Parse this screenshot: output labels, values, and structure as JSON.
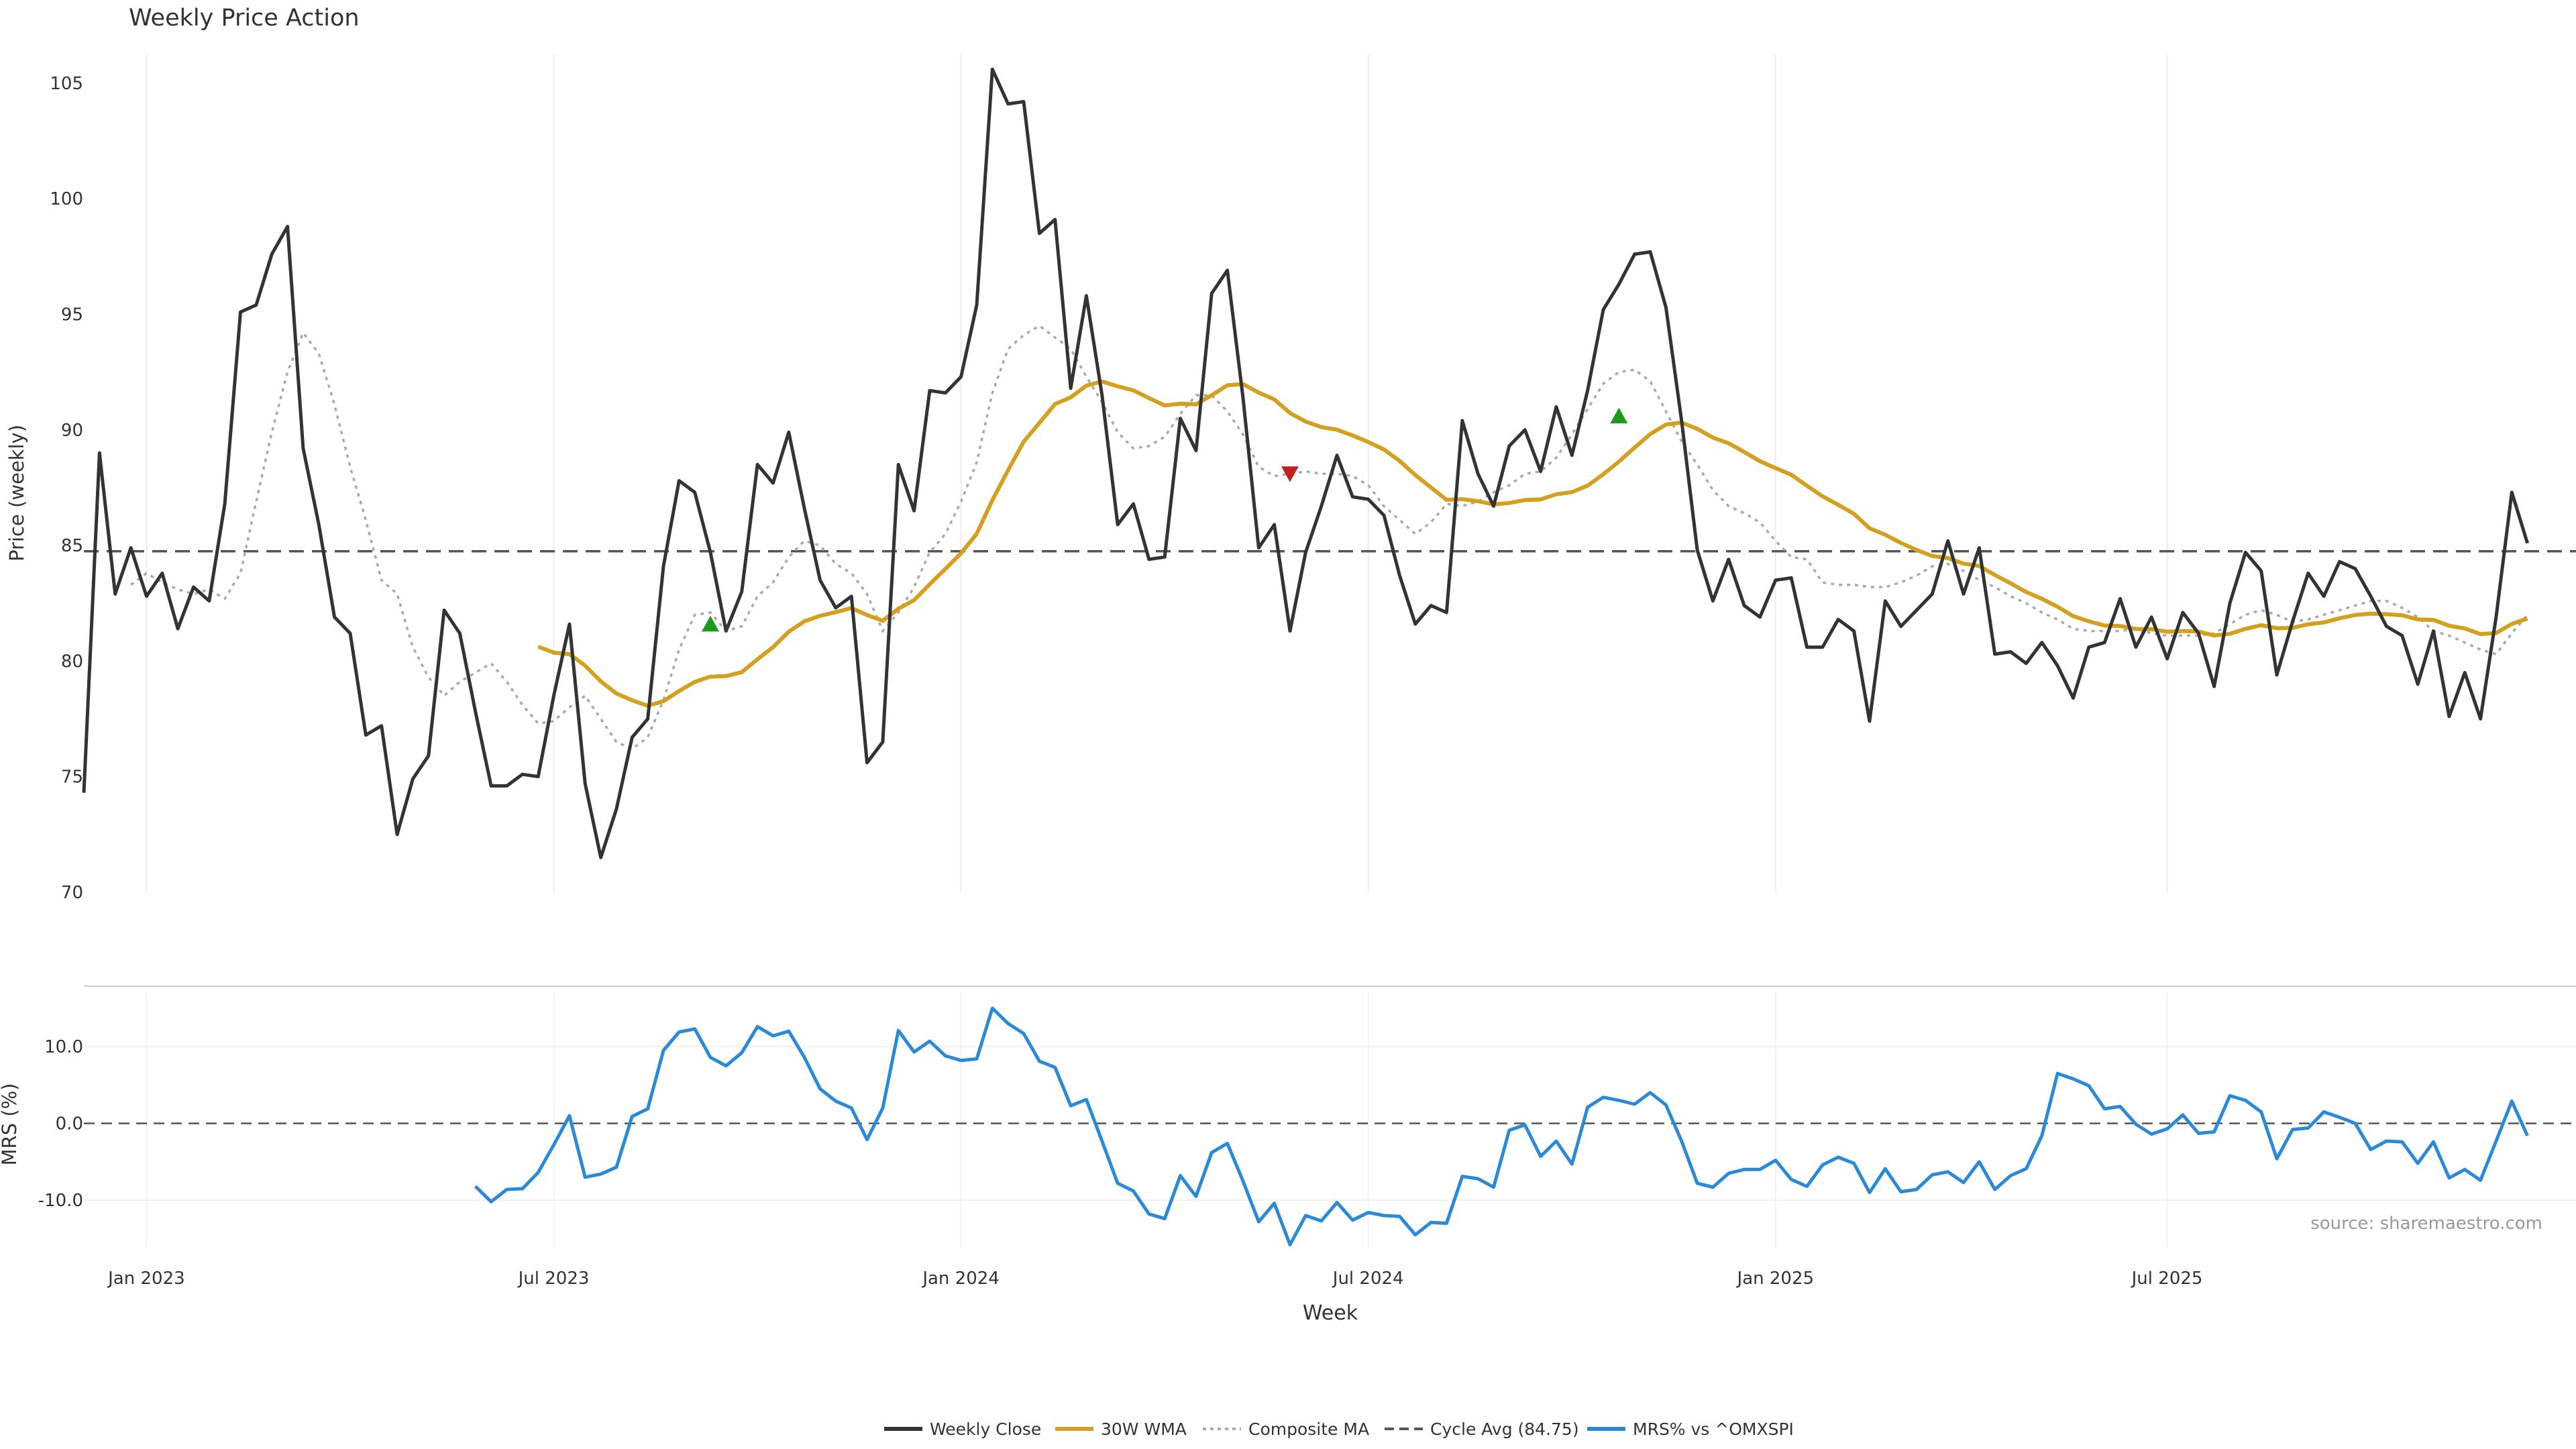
{
  "chart_data": {
    "type": "line",
    "title": "Weekly Price Action",
    "xlabel": "Week",
    "source_note": "source: sharemaestro.com",
    "x_ticks": [
      "Jan 2023",
      "Jul 2023",
      "Jan 2024",
      "Jul 2024",
      "Jan 2025",
      "Jul 2025"
    ],
    "price_panel": {
      "ylabel": "Price (weekly)",
      "ylim": [
        70,
        107
      ],
      "yticks": [
        70,
        75,
        80,
        85,
        90,
        95,
        100,
        105
      ],
      "cycle_avg": 84.75,
      "weekly_close": [
        74.3,
        89.0,
        82.9,
        84.9,
        82.8,
        83.8,
        81.4,
        83.2,
        82.6,
        86.8,
        95.1,
        95.4,
        97.6,
        98.8,
        89.2,
        85.9,
        81.9,
        81.2,
        76.8,
        77.2,
        72.5,
        74.9,
        75.9,
        82.2,
        81.2,
        77.8,
        74.6,
        74.6,
        75.1,
        75.0,
        78.5,
        81.6,
        74.7,
        71.5,
        73.6,
        76.7,
        77.5,
        84.1,
        87.8,
        87.3,
        84.7,
        81.3,
        83.0,
        88.5,
        87.7,
        89.9,
        86.6,
        83.5,
        82.3,
        82.8,
        75.6,
        76.5,
        88.5,
        86.5,
        91.7,
        91.6,
        92.3,
        95.4,
        105.6,
        104.1,
        104.2,
        98.5,
        99.1,
        91.8,
        95.8,
        91.5,
        85.9,
        86.8,
        84.4,
        84.5,
        90.5,
        89.1,
        95.9,
        96.9,
        91.4,
        84.9,
        85.9,
        81.3,
        84.7,
        86.7,
        88.9,
        87.1,
        87.0,
        86.3,
        83.7,
        81.6,
        82.4,
        82.1,
        90.4,
        88.1,
        86.7,
        89.3,
        90.0,
        88.2,
        91.0,
        88.9,
        91.7,
        95.2,
        96.3,
        97.6,
        97.7,
        95.3,
        90.4,
        84.8,
        82.6,
        84.4,
        82.4,
        81.9,
        83.5,
        83.6,
        80.6,
        80.6,
        81.8,
        81.3,
        77.4,
        82.6,
        81.5,
        82.2,
        82.9,
        85.2,
        82.9,
        84.9,
        80.3,
        80.4,
        79.9,
        80.8,
        79.8,
        78.4,
        80.6,
        80.8,
        82.7,
        80.6,
        81.9,
        80.1,
        82.1,
        81.2,
        78.9,
        82.5,
        84.7,
        83.9,
        79.4,
        81.7,
        83.8,
        82.8,
        84.3,
        84.0,
        82.8,
        81.5,
        81.1,
        79.0,
        81.3,
        77.6,
        79.5,
        77.5,
        81.9,
        87.3,
        85.1
      ],
      "composite_ma_start": 3,
      "composite_ma": [
        83.3,
        83.8,
        83.4,
        83.1,
        82.9,
        83.1,
        82.7,
        83.8,
        86.9,
        89.9,
        92.5,
        94.2,
        93.3,
        91.1,
        88.4,
        86.1,
        83.5,
        82.9,
        80.6,
        79.3,
        78.5,
        79.1,
        79.5,
        79.9,
        79.1,
        78.1,
        77.3,
        77.4,
        78.0,
        78.5,
        77.5,
        76.5,
        76.2,
        76.7,
        78.3,
        80.5,
        82.0,
        82.1,
        81.3,
        81.5,
        82.8,
        83.4,
        84.5,
        85.2,
        85.0,
        84.2,
        83.8,
        82.9,
        81.3,
        82.1,
        83.2,
        84.7,
        85.5,
        86.9,
        88.6,
        91.6,
        93.5,
        94.1,
        94.5,
        94.0,
        93.5,
        92.3,
        91.2,
        89.9,
        89.2,
        89.3,
        89.7,
        90.7,
        91.5,
        91.5,
        90.8,
        89.8,
        88.4,
        88.0,
        88.1,
        88.2,
        88.1,
        88.1,
        88.0,
        87.6,
        86.7,
        86.1,
        85.5,
        86.0,
        86.8,
        86.7,
        86.9,
        87.3,
        87.6,
        88.1,
        88.2,
        88.8,
        89.8,
        90.9,
        92.0,
        92.5,
        92.6,
        92.1,
        90.8,
        89.5,
        88.5,
        87.4,
        86.7,
        86.4,
        86.0,
        85.2,
        84.5,
        84.4,
        83.4,
        83.3,
        83.3,
        83.2,
        83.2,
        83.4,
        83.7,
        84.1,
        84.2,
        83.9,
        83.5,
        83.2,
        82.8,
        82.5,
        82.1,
        81.8,
        81.4,
        81.3,
        81.3,
        81.3,
        81.4,
        81.2,
        81.1,
        81.1,
        81.1,
        81.2,
        81.6,
        82.0,
        82.2,
        82.0,
        81.7,
        81.8,
        82.0,
        82.2,
        82.4,
        82.6,
        82.6,
        82.3,
        81.9,
        81.3,
        81.1,
        80.8,
        80.5,
        80.3,
        81.2,
        82.0
      ]
    },
    "mrs_panel": {
      "ylabel": "MRS (%)",
      "ylim": [
        -17.5,
        17
      ],
      "yticks": [
        -10.0,
        0.0,
        10.0
      ],
      "zero_line": 0.0,
      "start_index": 25,
      "values": [
        -8.2,
        -10.2,
        -8.6,
        -8.5,
        -6.4,
        -2.8,
        1.0,
        -7.0,
        -6.6,
        -5.7,
        0.9,
        1.9,
        9.5,
        11.9,
        12.3,
        8.6,
        7.5,
        9.2,
        12.6,
        11.4,
        12.0,
        8.6,
        4.5,
        2.9,
        2.0,
        -2.1,
        2.0,
        12.1,
        9.3,
        10.7,
        8.8,
        8.2,
        8.4,
        15.0,
        13.0,
        11.7,
        8.1,
        7.3,
        2.3,
        3.1,
        -2.3,
        -7.8,
        -8.8,
        -11.8,
        -12.4,
        -6.8,
        -9.5,
        -3.8,
        -2.6,
        -7.5,
        -12.8,
        -10.4,
        -15.8,
        -12.0,
        -12.7,
        -10.3,
        -12.6,
        -11.6,
        -12.0,
        -12.1,
        -14.5,
        -12.9,
        -13.0,
        -6.9,
        -7.2,
        -8.3,
        -0.9,
        -0.2,
        -4.3,
        -2.3,
        -5.3,
        2.1,
        3.4,
        3.0,
        2.5,
        4.0,
        2.4,
        -2.3,
        -7.8,
        -8.3,
        -6.5,
        -6.0,
        -6.0,
        -4.8,
        -7.3,
        -8.2,
        -5.4,
        -4.4,
        -5.2,
        -9.0,
        -5.9,
        -8.9,
        -8.6,
        -6.7,
        -6.3,
        -7.7,
        -5.0,
        -8.6,
        -6.8,
        -5.9,
        -1.6,
        6.5,
        5.8,
        4.9,
        1.9,
        2.2,
        -0.1,
        -1.4,
        -0.7,
        1.1,
        -1.3,
        -1.1,
        3.6,
        3.0,
        1.5,
        -4.6,
        -0.8,
        -0.6,
        1.5,
        0.8,
        -0.0,
        -3.4,
        -2.3,
        -2.4,
        -5.2,
        -2.4,
        -7.1,
        -6.0,
        -7.4,
        -2.3,
        2.9,
        -1.6
      ]
    },
    "markers": [
      {
        "type": "buy",
        "x_index": 40,
        "price": 81.6
      },
      {
        "type": "sell",
        "x_index": 77,
        "price": 88.1
      },
      {
        "type": "buy",
        "x_index": 98,
        "price": 90.6
      }
    ],
    "legend": [
      {
        "label": "Weekly Close",
        "style": "solid",
        "color": "#333333"
      },
      {
        "label": "30W WMA",
        "style": "solid",
        "color": "#d4a020"
      },
      {
        "label": "Composite MA",
        "style": "dotted",
        "color": "#aaaaaa"
      },
      {
        "label": "Cycle Avg (84.75)",
        "style": "dashed",
        "color": "#555555"
      },
      {
        "label": "MRS% vs ^OMXSPI",
        "style": "solid",
        "color": "#2a8ad8"
      }
    ],
    "colors": {
      "close": "#333333",
      "wma": "#d4a020",
      "composite": "#aaaaaa",
      "cycle": "#555555",
      "mrs": "#2a8ad8",
      "buy": "#1a9b1a",
      "sell": "#c81e1e",
      "grid": "#ececec"
    }
  }
}
